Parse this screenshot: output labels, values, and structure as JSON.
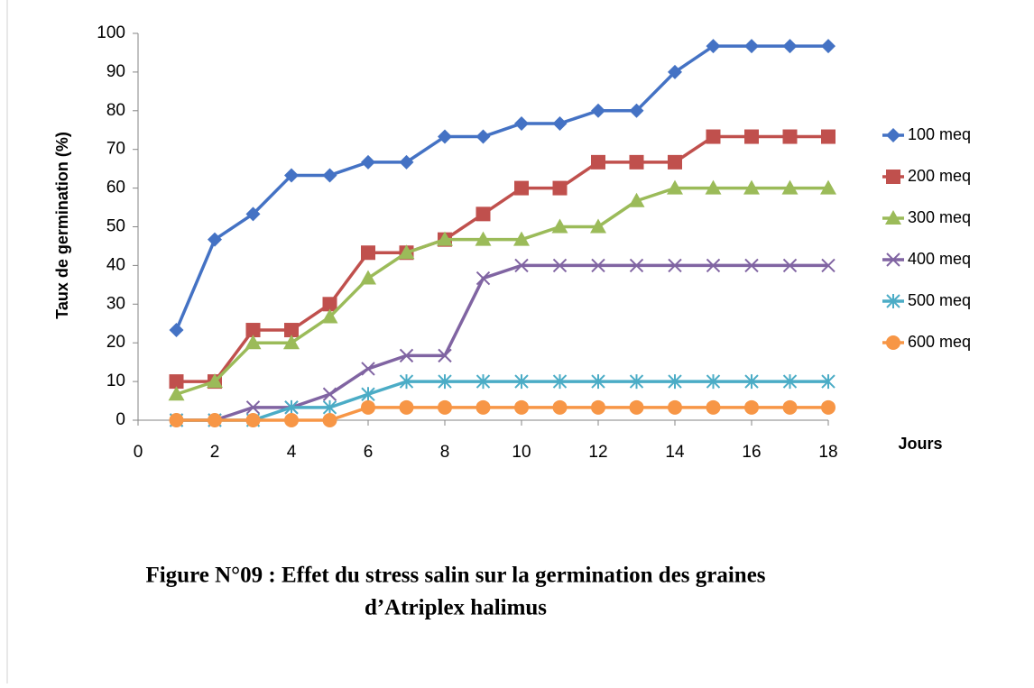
{
  "chart_data": {
    "type": "line",
    "ylabel": "Taux de germination (%)",
    "xlabel": "Jours",
    "caption": [
      "Figure N°09 : Effet du stress salin sur la germination des graines",
      "d’Atriplex halimus"
    ],
    "x": [
      1,
      2,
      3,
      4,
      5,
      6,
      7,
      8,
      9,
      10,
      11,
      12,
      13,
      14,
      15,
      16,
      17,
      18
    ],
    "xlim": [
      0,
      18
    ],
    "xticks": [
      0,
      2,
      4,
      6,
      8,
      10,
      12,
      14,
      16,
      18
    ],
    "ylim": [
      0,
      100
    ],
    "yticks": [
      0,
      10,
      20,
      30,
      40,
      50,
      60,
      70,
      80,
      90,
      100
    ],
    "grid": false,
    "legend": "right",
    "series": [
      {
        "name": "100 meq",
        "color": "#4472c4",
        "marker": "diamond",
        "values": [
          23.3,
          46.7,
          53.3,
          63.3,
          63.3,
          66.7,
          66.7,
          73.3,
          73.3,
          76.7,
          76.7,
          80,
          80,
          90,
          96.7,
          96.7,
          96.7,
          96.7
        ]
      },
      {
        "name": "200 meq",
        "color": "#c0504d",
        "marker": "square",
        "values": [
          10,
          10,
          23.3,
          23.3,
          30,
          43.3,
          43.3,
          46.7,
          53.3,
          60,
          60,
          66.7,
          66.7,
          66.7,
          73.3,
          73.3,
          73.3,
          73.3
        ]
      },
      {
        "name": "300 meq",
        "color": "#9bbb59",
        "marker": "triangle",
        "values": [
          6.7,
          10,
          20,
          20,
          26.7,
          36.7,
          43.3,
          46.7,
          46.7,
          46.7,
          50,
          50,
          56.7,
          60,
          60,
          60,
          60,
          60
        ]
      },
      {
        "name": "400 meq",
        "color": "#8064a2",
        "marker": "x",
        "values": [
          0,
          0,
          3.3,
          3.3,
          6.7,
          13.3,
          16.7,
          16.7,
          36.7,
          40,
          40,
          40,
          40,
          40,
          40,
          40,
          40,
          40
        ]
      },
      {
        "name": "500 meq",
        "color": "#4bacc6",
        "marker": "star",
        "values": [
          0,
          0,
          0,
          3.3,
          3.3,
          6.7,
          10,
          10,
          10,
          10,
          10,
          10,
          10,
          10,
          10,
          10,
          10,
          10
        ]
      },
      {
        "name": "600 meq",
        "color": "#f79646",
        "marker": "circle",
        "values": [
          0,
          0,
          0,
          0,
          0,
          3.3,
          3.3,
          3.3,
          3.3,
          3.3,
          3.3,
          3.3,
          3.3,
          3.3,
          3.3,
          3.3,
          3.3,
          3.3
        ]
      }
    ]
  }
}
